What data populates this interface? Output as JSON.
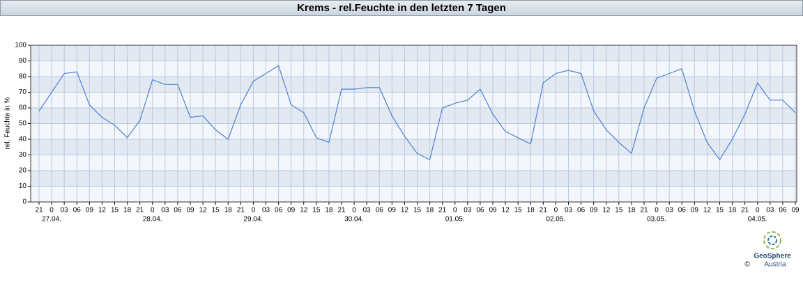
{
  "chart_data": {
    "type": "line",
    "title": "Krems - rel.Feuchte in den letzten 7 Tagen",
    "y_label": "rel. Feuchte in %",
    "categories": [
      "21",
      "0",
      "03",
      "06",
      "09",
      "12",
      "15",
      "18",
      "21",
      "0",
      "03",
      "06",
      "09",
      "12",
      "15",
      "18",
      "21",
      "0",
      "03",
      "06",
      "09",
      "12",
      "15",
      "18",
      "21",
      "0",
      "03",
      "06",
      "09",
      "12",
      "15",
      "18",
      "21",
      "0",
      "03",
      "06",
      "09",
      "12",
      "15",
      "18",
      "21",
      "0",
      "03",
      "06",
      "09",
      "12",
      "15",
      "18",
      "21",
      "0",
      "03",
      "06",
      "09",
      "12",
      "15",
      "18",
      "21",
      "0",
      "03",
      "06",
      "09"
    ],
    "date_labels": [
      "27.04.",
      "28.04.",
      "29.04.",
      "30.04.",
      "01.05.",
      "02.05.",
      "03.05.",
      "04.05."
    ],
    "series": [
      {
        "name": "rel. Feuchte",
        "color": "#4f7fd8",
        "values": [
          58,
          70,
          82,
          83,
          62,
          54,
          49,
          41,
          52,
          78,
          75,
          75,
          54,
          55,
          46,
          40,
          62,
          77,
          82,
          87,
          62,
          57,
          41,
          38,
          72,
          72,
          73,
          73,
          55,
          42,
          31,
          27,
          60,
          63,
          65,
          72,
          56,
          45,
          41,
          37,
          76,
          82,
          84,
          82,
          58,
          46,
          38,
          31,
          60,
          79,
          82,
          85,
          58,
          38,
          27,
          40,
          56,
          76,
          65,
          65,
          57
        ]
      }
    ],
    "ylim": [
      0,
      100
    ],
    "yticks": [
      0,
      10,
      20,
      30,
      40,
      50,
      60,
      70,
      80,
      90,
      100
    ],
    "grid": true,
    "logo": {
      "name": "GeoSphere",
      "sub": "Austria",
      "copyright": "©"
    }
  }
}
